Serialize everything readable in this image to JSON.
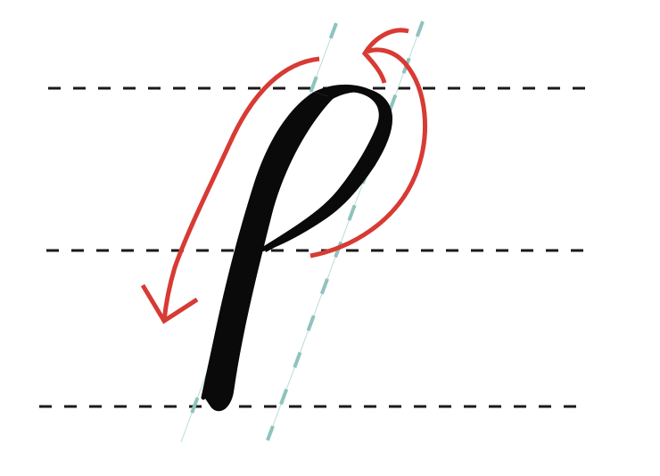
{
  "colors": {
    "background": "#ffffff",
    "guide_line": "#1a1a1a",
    "slant_guide": "#8fc3bd",
    "glyph": "#0a0a0a",
    "arrow": "#d83a34"
  }
}
